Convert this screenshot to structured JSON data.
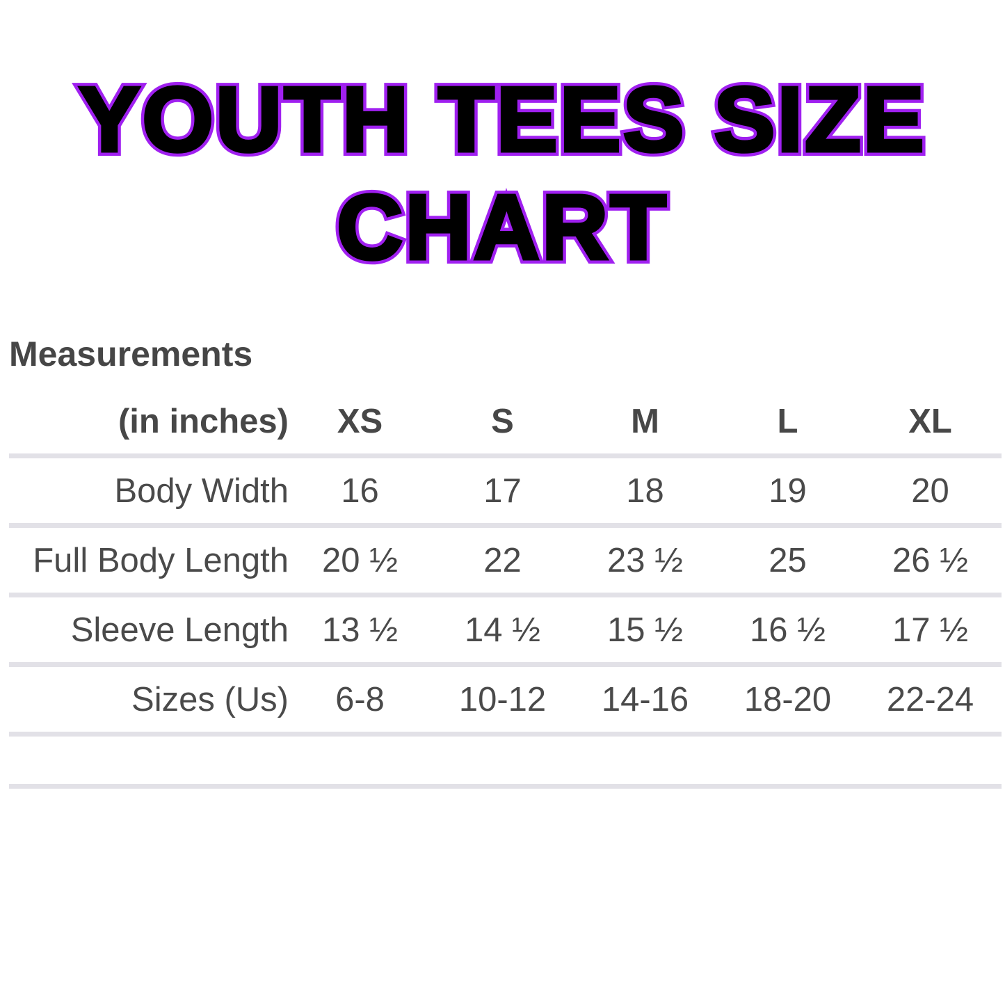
{
  "title": {
    "line1": "YOUTH TEES SIZE",
    "line2": "CHART",
    "fill_color": "#000000",
    "outline_color": "#a020f0"
  },
  "section_heading": "Measurements",
  "chart_data": {
    "type": "table",
    "title": "YOUTH TEES SIZE CHART",
    "section_heading": "Measurements",
    "unit_label": "(in inches)",
    "size_columns": [
      "XS",
      "S",
      "M",
      "L",
      "XL"
    ],
    "rows": [
      {
        "label": "Body Width",
        "values": [
          "16",
          "17",
          "18",
          "19",
          "20"
        ]
      },
      {
        "label": "Full Body Length",
        "values": [
          "20 ½",
          "22",
          "23 ½",
          "25",
          "26 ½"
        ]
      },
      {
        "label": "Sleeve Length",
        "values": [
          "13 ½",
          "14 ½",
          "15 ½",
          "16 ½",
          "17 ½"
        ]
      },
      {
        "label": "Sizes (Us)",
        "values": [
          "6-8",
          "10-12",
          "14-16",
          "18-20",
          "22-24"
        ]
      }
    ],
    "layout_hints": {
      "label_column_alignment": "right",
      "value_alignment": "center",
      "grid": "horizontal-dividers-only",
      "trailing_empty_row": true
    }
  },
  "colors": {
    "background": "#ffffff",
    "cell_text": "#4a4a4a",
    "heading_text": "#464646",
    "divider": "#e2e1e7"
  }
}
